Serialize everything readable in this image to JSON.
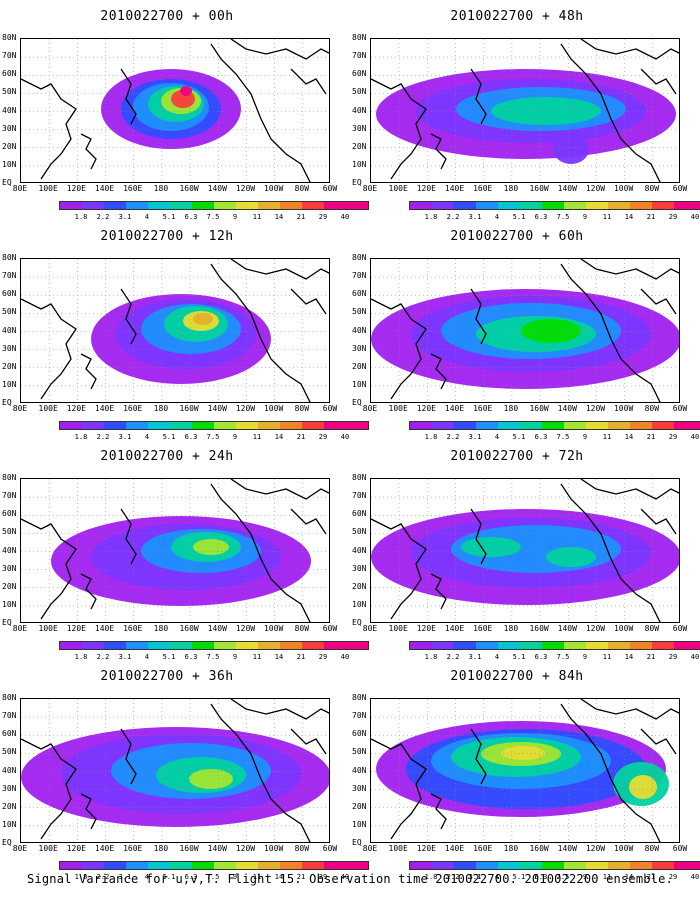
{
  "caption": "Signal Variance for u,v,T. Flight 15. Observation time 2010022700. 2010022200 ensemble.",
  "lat_labels": [
    "80N",
    "70N",
    "60N",
    "50N",
    "40N",
    "30N",
    "20N",
    "10N",
    "EQ"
  ],
  "lon_labels": [
    "80E",
    "100E",
    "120E",
    "140E",
    "160E",
    "180",
    "160W",
    "140W",
    "120W",
    "100W",
    "80W",
    "60W"
  ],
  "colorbar": {
    "labels": [
      "1.8",
      "2.2",
      "3.1",
      "4",
      "5.1",
      "6.3",
      "7.5",
      "9",
      "11",
      "14",
      "21",
      "29",
      "40"
    ],
    "colors": [
      "#a020f0",
      "#7b36ff",
      "#2f4cff",
      "#1e90ff",
      "#00c8d2",
      "#00d2a0",
      "#00dc00",
      "#a0e632",
      "#e6dc32",
      "#e6af2d",
      "#f08228",
      "#fa3c3c",
      "#f00082"
    ]
  },
  "panels": [
    {
      "title": "2010022700 + 00h"
    },
    {
      "title": "2010022700 + 48h"
    },
    {
      "title": "2010022700 + 12h"
    },
    {
      "title": "2010022700 + 60h"
    },
    {
      "title": "2010022700 + 24h"
    },
    {
      "title": "2010022700 + 72h"
    },
    {
      "title": "2010022700 + 36h"
    },
    {
      "title": "2010022700 + 84h"
    }
  ]
}
